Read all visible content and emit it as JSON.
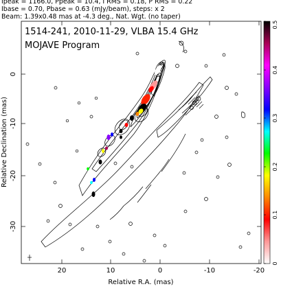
{
  "header": {
    "line1": "Ipeak = 1166.0, Ppeak = 10.4, I RMS = 0.18, P RMS = 0.22",
    "line2": "Ibase = 0.70, Pbase = 0.63 (mJy/beam), steps: x 2",
    "line3": "Beam: 1.39x0.48 mas at -4.3 deg., Nat. Wgt. (no taper)"
  },
  "plot": {
    "title_line1": "1514-241, 2010-11-29, VLBA 15.4 GHz",
    "title_line2": "MOJAVE Program",
    "xlabel": "Relative R.A. (mas)",
    "ylabel": "Relative Declination (mas)",
    "xticks": [
      "20",
      "10",
      "0",
      "-10",
      "-20"
    ],
    "yticks": [
      "0",
      "-10",
      "-20",
      "-30"
    ]
  },
  "colorbar": {
    "ticks": [
      "0",
      "0.1",
      "0.2",
      "0.3",
      "0.4",
      "0.5"
    ],
    "colors": [
      "#ffffff",
      "#ff9999",
      "#ff0000",
      "#ff8800",
      "#ffff00",
      "#00ff00",
      "#00ffff",
      "#0000ff",
      "#8800ff",
      "#ff00ff",
      "#aa0055",
      "#000000"
    ]
  }
}
